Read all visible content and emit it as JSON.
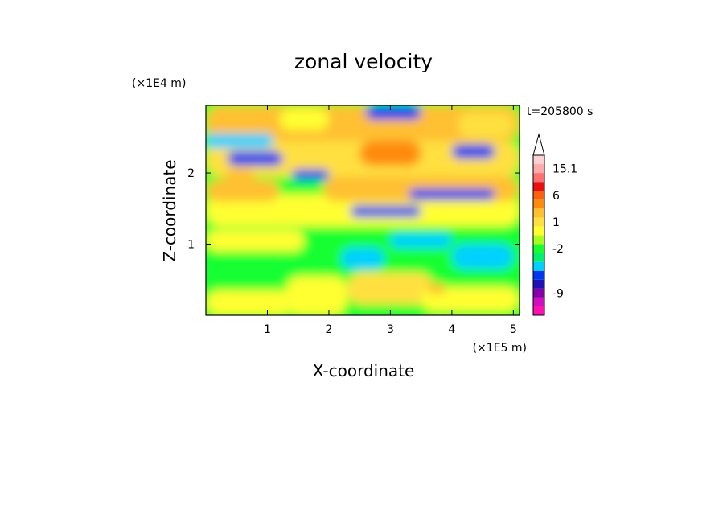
{
  "chart_data": {
    "type": "heatmap",
    "title": "zonal velocity",
    "xlabel": "X-coordinate",
    "ylabel": "Z-coordinate",
    "x_multiplier": "(×1E5 m)",
    "y_multiplier": "(×1E4 m)",
    "time_label": "t=205800 s",
    "xlim": [
      0,
      5.1
    ],
    "ylim": [
      0,
      2.95
    ],
    "x_ticks": [
      1,
      2,
      3,
      4,
      5
    ],
    "y_ticks": [
      1,
      2
    ],
    "colorbar": {
      "bins": [
        {
          "color": "#ff10b0"
        },
        {
          "color": "#d010c0"
        },
        {
          "color": "#8a00a8"
        },
        {
          "color": "#2010b8"
        },
        {
          "color": "#0038f0"
        },
        {
          "color": "#00d0ff"
        },
        {
          "color": "#00f070"
        },
        {
          "color": "#18ff30"
        },
        {
          "color": "#a8ff20"
        },
        {
          "color": "#ffff30"
        },
        {
          "color": "#ffe040"
        },
        {
          "color": "#ffc030"
        },
        {
          "color": "#ff8a10"
        },
        {
          "color": "#ff6010"
        },
        {
          "color": "#e81010"
        },
        {
          "color": "#ff7070"
        },
        {
          "color": "#ffaaaa"
        },
        {
          "color": "#ffd0d0"
        }
      ],
      "tick_labels": [
        {
          "label": "15.1",
          "bin": 16.5
        },
        {
          "label": "6",
          "bin": 13.5
        },
        {
          "label": "1",
          "bin": 10.5
        },
        {
          "label": "-2",
          "bin": 7.5
        },
        {
          "label": "-9",
          "bin": 2.5
        }
      ]
    },
    "field_regions": [
      {
        "x": 0.0,
        "y": 0.0,
        "w": 5.1,
        "h": 2.95,
        "color": "#18ff30"
      },
      {
        "x": 0.0,
        "y": 0.0,
        "w": 1.4,
        "h": 0.35,
        "color": "#ffff30"
      },
      {
        "x": 1.3,
        "y": 0.0,
        "w": 1.0,
        "h": 0.55,
        "color": "#ffff30"
      },
      {
        "x": 2.3,
        "y": 0.15,
        "w": 1.4,
        "h": 0.45,
        "color": "#ffe040"
      },
      {
        "x": 3.5,
        "y": 0.05,
        "w": 1.6,
        "h": 0.35,
        "color": "#ffff30"
      },
      {
        "x": 0.0,
        "y": 0.9,
        "w": 1.6,
        "h": 0.3,
        "color": "#ffff30"
      },
      {
        "x": 0.0,
        "y": 1.25,
        "w": 5.1,
        "h": 0.45,
        "color": "#ffff30"
      },
      {
        "x": 0.0,
        "y": 1.6,
        "w": 1.2,
        "h": 0.3,
        "color": "#ffc030"
      },
      {
        "x": 1.9,
        "y": 1.6,
        "w": 3.2,
        "h": 0.35,
        "color": "#ffc030"
      },
      {
        "x": 0.0,
        "y": 1.95,
        "w": 5.1,
        "h": 0.5,
        "color": "#ffe040"
      },
      {
        "x": 0.0,
        "y": 2.45,
        "w": 5.1,
        "h": 0.5,
        "color": "#ffc030"
      },
      {
        "x": 2.5,
        "y": 2.1,
        "w": 1.0,
        "h": 0.35,
        "color": "#ff8a10"
      },
      {
        "x": 4.1,
        "y": 2.5,
        "w": 0.9,
        "h": 0.35,
        "color": "#ffe040"
      },
      {
        "x": 4.0,
        "y": 0.65,
        "w": 1.0,
        "h": 0.35,
        "color": "#00d0ff"
      },
      {
        "x": 2.2,
        "y": 0.65,
        "w": 0.7,
        "h": 0.3,
        "color": "#00d0ff"
      },
      {
        "x": 3.0,
        "y": 0.95,
        "w": 1.0,
        "h": 0.2,
        "color": "#00d0ff"
      },
      {
        "x": 0.0,
        "y": 2.35,
        "w": 1.1,
        "h": 0.2,
        "color": "#00d0ff"
      },
      {
        "x": 0.35,
        "y": 2.1,
        "w": 0.9,
        "h": 0.2,
        "color": "#0038f0"
      },
      {
        "x": 2.35,
        "y": 1.38,
        "w": 1.15,
        "h": 0.16,
        "color": "#0038f0"
      },
      {
        "x": 3.3,
        "y": 1.62,
        "w": 1.4,
        "h": 0.16,
        "color": "#0038f0"
      },
      {
        "x": 2.6,
        "y": 2.75,
        "w": 0.9,
        "h": 0.2,
        "color": "#0038f0"
      },
      {
        "x": 4.0,
        "y": 2.2,
        "w": 0.7,
        "h": 0.2,
        "color": "#0038f0"
      },
      {
        "x": 1.4,
        "y": 1.9,
        "w": 0.6,
        "h": 0.15,
        "color": "#0038f0"
      },
      {
        "x": 0.3,
        "y": 1.8,
        "w": 0.5,
        "h": 0.25,
        "color": "#ffc030"
      },
      {
        "x": 1.2,
        "y": 2.6,
        "w": 0.8,
        "h": 0.3,
        "color": "#ffff30"
      },
      {
        "x": 3.6,
        "y": 0.3,
        "w": 0.3,
        "h": 0.15,
        "color": "#ffc030"
      }
    ]
  }
}
